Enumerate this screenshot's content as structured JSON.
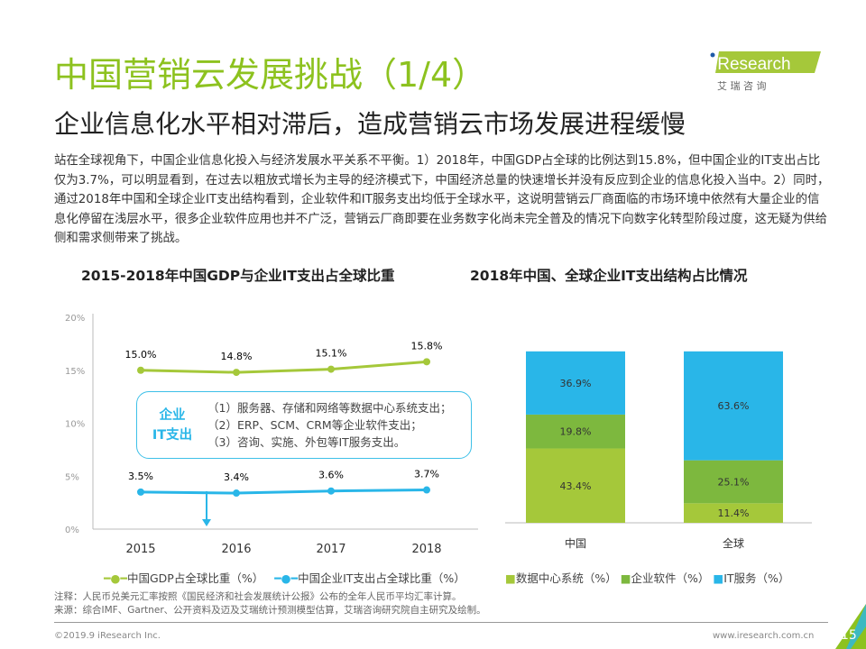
{
  "title": "中国营销云发展挑战（1/4）",
  "subtitle": "企业信息化水平相对滞后，造成营销云市场发展进程缓慢",
  "body": "站在全球视角下，中国企业信息化投入与经济发展水平关系不平衡。1）2018年，中国GDP占全球的比例达到15.8%，但中国企业的IT支出占比仅为3.7%，可以明显看到，在过去以粗放式增长为主导的经济模式下，中国经济总量的快速增长并没有反应到企业的信息化投入当中。2）同时，通过2018年中国和全球企业IT支出结构看到，企业软件和IT服务支出均低于全球水平，这说明营销云厂商面临的市场环境中依然有大量企业的信息化停留在浅层水平，很多企业软件应用也并不广泛，营销云厂商即要在业务数字化尚未完全普及的情况下向数字化转型阶段过度，这无疑为供给侧和需求侧带来了挑战。",
  "logo": {
    "text": "iResearch",
    "cn": "艾 瑞 咨 询"
  },
  "colors": {
    "green": "#a5c83a",
    "blue": "#29b6e8",
    "title": "#8dc21f",
    "bar_dc": "#a5c83a",
    "bar_sw": "#7db83e",
    "bar_it": "#29b6e8"
  },
  "infobox": {
    "head1": "企业",
    "head2": "IT支出",
    "items": [
      "（1）服务器、存储和网络等数据中心系统支出；",
      "（2）ERP、SCM、CRM等企业软件支出；",
      "（3）咨询、实施、外包等IT服务支出。"
    ]
  },
  "chart_data": [
    {
      "type": "line",
      "title": "2015-2018年中国GDP与企业IT支出占全球比重",
      "categories": [
        "2015",
        "2016",
        "2017",
        "2018"
      ],
      "yticks": [
        "0%",
        "5%",
        "10%",
        "15%",
        "20%"
      ],
      "ylim": [
        0,
        20
      ],
      "series": [
        {
          "name": "中国GDP占全球比重（%）",
          "values": [
            15.0,
            14.8,
            15.1,
            15.8
          ],
          "labels": [
            "15.0%",
            "14.8%",
            "15.1%",
            "15.8%"
          ],
          "color": "#a5c83a"
        },
        {
          "name": "中国企业IT支出占全球比重（%）",
          "values": [
            3.5,
            3.4,
            3.6,
            3.7
          ],
          "labels": [
            "3.5%",
            "3.4%",
            "3.6%",
            "3.7%"
          ],
          "color": "#29b6e8"
        }
      ]
    },
    {
      "type": "bar",
      "stacked": true,
      "title": "2018年中国、全球企业IT支出结构占比情况",
      "categories": [
        "中国",
        "全球"
      ],
      "ylim": [
        0,
        100
      ],
      "series": [
        {
          "name": "数据中心系统（%）",
          "values": [
            43.4,
            11.4
          ],
          "color": "#a5c83a"
        },
        {
          "name": "企业软件（%）",
          "values": [
            19.8,
            25.1
          ],
          "color": "#7db83e"
        },
        {
          "name": "IT服务（%）",
          "values": [
            36.9,
            63.6
          ],
          "color": "#29b6e8"
        }
      ]
    }
  ],
  "note": "注释：人民币兑美元汇率按照《国民经济和社会发展统计公报》公布的全年人民币平均汇率计算。",
  "source": "来源：综合IMF、Gartner、公开资料及迈及艾瑞统计预测模型估算，艾瑞咨询研究院自主研究及绘制。",
  "footer": {
    "copyright": "©2019.9 iResearch Inc.",
    "site": "www.iresearch.com.cn",
    "page": "15"
  }
}
